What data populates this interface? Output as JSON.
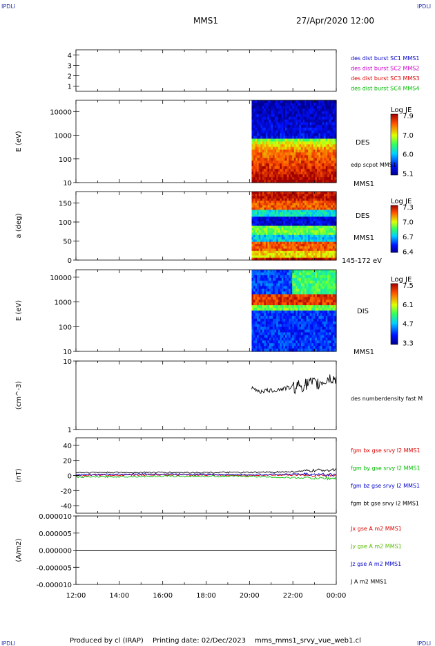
{
  "header": {
    "corner_tl": "IPDLI",
    "corner_tr": "IPDLI",
    "corner_bl": "IPDLI",
    "corner_br": "IPDLI",
    "spacecraft": "MMS1",
    "datetime": "27/Apr/2020 12:00"
  },
  "footer": {
    "produced_by": "Produced by cl (IRAP)",
    "printing_date": "Printing date: 02/Dec/2023",
    "filename": "mms_mms1_srvy_vue_web1.cl"
  },
  "chart_data": [
    {
      "type": "line",
      "panel": "burst",
      "ylim": [
        0.5,
        4.5
      ],
      "yticks": [
        "4",
        "3",
        "2",
        "1"
      ],
      "legend": [
        {
          "text": "des dist burst SC1 MMS1",
          "color": "#0000cc"
        },
        {
          "text": "des dist burst SC2 MMS2",
          "color": "#cc00cc"
        },
        {
          "text": "des dist burst SC3 MMS3",
          "color": "#dd0000"
        },
        {
          "text": "des dist burst SC4 MMS4",
          "color": "#00bb00"
        }
      ]
    },
    {
      "type": "heatmap",
      "panel": "des-energy",
      "ylabel": "E (eV)",
      "yscale": "log",
      "ylim": [
        10,
        30000
      ],
      "yticks": [
        "10000",
        "1000",
        "100",
        "10"
      ],
      "data_start_hour": 20.1,
      "right_labels": [
        "DES",
        "edp scpot MMS1",
        "MMS1"
      ],
      "colorbar": {
        "title": "Log JE",
        "ticks": [
          "7.9",
          "7.0",
          "6.0",
          "5.1"
        ],
        "range": [
          5.1,
          7.9
        ]
      }
    },
    {
      "type": "heatmap",
      "panel": "des-pitch",
      "ylabel": "a (deg)",
      "ylim": [
        0,
        180
      ],
      "yticks": [
        "150",
        "100",
        "50",
        "0"
      ],
      "data_start_hour": 20.1,
      "right_labels": [
        "DES",
        "MMS1",
        "145-172 eV"
      ],
      "colorbar": {
        "title": "Log JE",
        "ticks": [
          "7.3",
          "7.0",
          "6.7",
          "6.4"
        ],
        "range": [
          6.4,
          7.3
        ]
      }
    },
    {
      "type": "heatmap",
      "panel": "dis-energy",
      "ylabel": "E (eV)",
      "yscale": "log",
      "ylim": [
        10,
        20000
      ],
      "yticks": [
        "10000",
        "1000",
        "100",
        "10"
      ],
      "data_start_hour": 20.1,
      "right_labels": [
        "DIS",
        "MMS1"
      ],
      "colorbar": {
        "title": "Log JE",
        "ticks": [
          "7.5",
          "6.1",
          "4.7",
          "3.3"
        ],
        "range": [
          3.3,
          7.5
        ]
      }
    },
    {
      "type": "line",
      "panel": "density",
      "ylabel": "(cm^-3)",
      "yscale": "log",
      "ylim": [
        1,
        10
      ],
      "yticks": [
        "10",
        "1"
      ],
      "series": [
        {
          "name": "des numberdensity fast M",
          "color": "#000000",
          "x": [
            20.1,
            20.3,
            20.5,
            20.7,
            21.0,
            21.3,
            21.6,
            21.9,
            22.2,
            22.5,
            22.8,
            23.1,
            23.4,
            23.7,
            24.0
          ],
          "y": [
            4.0,
            3.8,
            3.6,
            3.7,
            3.7,
            3.8,
            4.0,
            4.1,
            4.4,
            4.5,
            4.8,
            4.6,
            5.0,
            5.6,
            5.4
          ]
        }
      ]
    },
    {
      "type": "line",
      "panel": "fgm",
      "ylabel": "(nT)",
      "ylim": [
        -50,
        50
      ],
      "yticks": [
        "40",
        "20",
        "0",
        "-20",
        "-40"
      ],
      "series": [
        {
          "name": "fgm bx gse srvy l2 MMS1",
          "color": "#dd0000",
          "x": [
            12,
            16,
            20,
            22,
            24
          ],
          "y": [
            0,
            1,
            0,
            1,
            0
          ]
        },
        {
          "name": "fgm by gse srvy l2 MMS1",
          "color": "#00bb00",
          "x": [
            12,
            16,
            20,
            22,
            24
          ],
          "y": [
            -2,
            -1,
            -1,
            -3,
            -4
          ]
        },
        {
          "name": "fgm bz gse srvy l2 MMS1",
          "color": "#0000cc",
          "x": [
            12,
            16,
            20,
            22,
            24
          ],
          "y": [
            1,
            2,
            1,
            2,
            1
          ]
        },
        {
          "name": "fgm bt gse srvy l2 MMS1",
          "color": "#000000",
          "x": [
            12,
            16,
            20,
            22,
            24
          ],
          "y": [
            4,
            4,
            4,
            5,
            8
          ]
        }
      ]
    },
    {
      "type": "line",
      "panel": "current",
      "ylabel": "(A/m2)",
      "ylim": [
        -1e-05,
        1e-05
      ],
      "yticks": [
        "0.000010",
        "0.000005",
        "0.000000",
        "-0.000005",
        "-0.000010"
      ],
      "series": [
        {
          "name": "Jx gse A m2 MMS1",
          "color": "#dd0000",
          "x": [
            12,
            24
          ],
          "y": [
            0,
            0
          ]
        },
        {
          "name": "Jy gse A m2 MMS1",
          "color": "#55bb00",
          "x": [
            12,
            24
          ],
          "y": [
            0,
            0
          ]
        },
        {
          "name": "Jz gse A m2 MMS1",
          "color": "#0000cc",
          "x": [
            12,
            24
          ],
          "y": [
            0,
            0
          ]
        },
        {
          "name": "J A m2 MMS1",
          "color": "#000000",
          "x": [
            12,
            24
          ],
          "y": [
            0,
            0
          ]
        }
      ]
    }
  ],
  "xaxis": {
    "range": [
      12,
      24
    ],
    "ticks": [
      "12:00",
      "14:00",
      "16:00",
      "18:00",
      "20:00",
      "22:00",
      "00:00"
    ]
  }
}
